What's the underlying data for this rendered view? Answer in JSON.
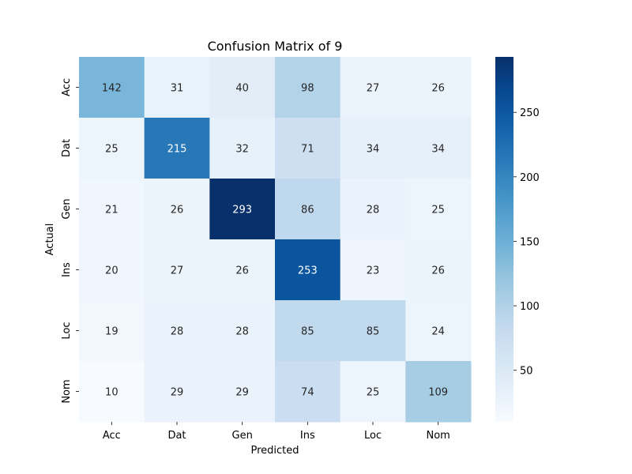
{
  "chart_data": {
    "type": "heatmap",
    "title": "Confusion Matrix of 9",
    "xlabel": "Predicted",
    "ylabel": "Actual",
    "x_categories": [
      "Acc",
      "Dat",
      "Gen",
      "Ins",
      "Loc",
      "Nom"
    ],
    "y_categories": [
      "Acc",
      "Dat",
      "Gen",
      "Ins",
      "Loc",
      "Nom"
    ],
    "values": [
      [
        142,
        31,
        40,
        98,
        27,
        26
      ],
      [
        25,
        215,
        32,
        71,
        34,
        34
      ],
      [
        21,
        26,
        293,
        86,
        28,
        25
      ],
      [
        20,
        27,
        26,
        253,
        23,
        26
      ],
      [
        19,
        28,
        28,
        85,
        85,
        24
      ],
      [
        10,
        29,
        29,
        74,
        25,
        109
      ]
    ],
    "colorbar": {
      "colormap": "Blues",
      "range": [
        10,
        293
      ],
      "ticks": [
        50,
        100,
        150,
        200,
        250
      ]
    }
  }
}
